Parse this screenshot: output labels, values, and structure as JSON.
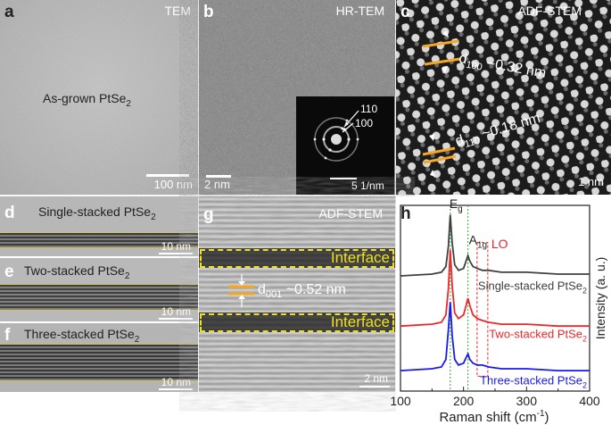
{
  "panels": {
    "a": {
      "label": "a",
      "title": "TEM",
      "caption": "As-grown PtSe",
      "caption_sub": "2",
      "scalebar": "100 nm"
    },
    "b": {
      "label": "b",
      "title": "HR-TEM",
      "scalebar": "2 nm",
      "inset_spot1": "110",
      "inset_spot2": "100",
      "inset_scalebar": "5 1/nm"
    },
    "c": {
      "label": "c",
      "title": "ADF-STEM",
      "d100_prefix": "d",
      "d100_sub": "100",
      "d100_value": " ~0.32 nm",
      "d110_prefix": "d",
      "d110_sub": "110",
      "d110_value": " ~0.18 nm",
      "scalebar": "1 nm"
    },
    "d": {
      "label": "d",
      "title": "Single-stacked PtSe",
      "title_sub": "2",
      "scalebar": "10 nm"
    },
    "e": {
      "label": "e",
      "title": "Two-stacked PtSe",
      "title_sub": "2",
      "scalebar": "10 nm"
    },
    "f": {
      "label": "f",
      "title": "Three-stacked PtSe",
      "title_sub": "2",
      "scalebar": "10 nm"
    },
    "g": {
      "label": "g",
      "title": "ADF-STEM",
      "interface1": "Interface",
      "interface2": "Interface",
      "d001_prefix": "d",
      "d001_sub": "001",
      "d001_value": " ~0.52 nm",
      "scalebar": "2 nm"
    },
    "h": {
      "label": "h"
    }
  },
  "colors": {
    "scalebar": "#ffffff",
    "orange": "#f5a623",
    "yellow": "#f0e020",
    "gray_series": "#404040",
    "red_series": "#e8282a",
    "blue_series": "#1a1ae6",
    "green_line": "#2eaa2e",
    "lo_box": "#e8282a"
  },
  "chart_data": {
    "type": "line",
    "xlabel": "Raman shift (cm",
    "xlabel_sup": "-1",
    "xlabel_end": ")",
    "ylabel": "Intensity (a. u.)",
    "xlim": [
      100,
      400
    ],
    "xticks": [
      "100",
      "200",
      "300",
      "400"
    ],
    "grid": false,
    "peaks": [
      {
        "name": "E",
        "sub": "g",
        "x": 179
      },
      {
        "name": "A",
        "sub": "1g",
        "x": 207
      },
      {
        "name": "LO",
        "sub": "",
        "x": 230
      }
    ],
    "series": [
      {
        "name": "Single-stacked PtSe",
        "name_sub": "2",
        "color": "#404040",
        "x": [
          100,
          150,
          165,
          172,
          176,
          179,
          182,
          186,
          192,
          200,
          204,
          207,
          210,
          215,
          222,
          230,
          240,
          260,
          300,
          350,
          400
        ],
        "y": [
          0.62,
          0.63,
          0.64,
          0.67,
          0.78,
          0.95,
          0.8,
          0.68,
          0.65,
          0.66,
          0.7,
          0.73,
          0.7,
          0.67,
          0.66,
          0.65,
          0.65,
          0.64,
          0.64,
          0.63,
          0.63
        ]
      },
      {
        "name": "Two-stacked PtSe",
        "name_sub": "2",
        "color": "#e8282a",
        "x": [
          100,
          150,
          165,
          172,
          176,
          179,
          182,
          186,
          192,
          200,
          204,
          207,
          210,
          215,
          222,
          230,
          240,
          260,
          300,
          350,
          400
        ],
        "y": [
          0.35,
          0.36,
          0.37,
          0.41,
          0.55,
          0.76,
          0.57,
          0.42,
          0.39,
          0.41,
          0.46,
          0.5,
          0.46,
          0.41,
          0.39,
          0.38,
          0.37,
          0.36,
          0.36,
          0.35,
          0.35
        ]
      },
      {
        "name": "Three-stacked PtSe",
        "name_sub": "2",
        "color": "#1a1ae6",
        "x": [
          100,
          150,
          165,
          172,
          176,
          179,
          182,
          186,
          192,
          200,
          204,
          207,
          210,
          215,
          222,
          230,
          240,
          260,
          300,
          350,
          400
        ],
        "y": [
          0.11,
          0.12,
          0.13,
          0.17,
          0.33,
          0.48,
          0.3,
          0.17,
          0.14,
          0.15,
          0.18,
          0.2,
          0.17,
          0.15,
          0.14,
          0.14,
          0.13,
          0.12,
          0.12,
          0.11,
          0.11
        ]
      }
    ]
  }
}
